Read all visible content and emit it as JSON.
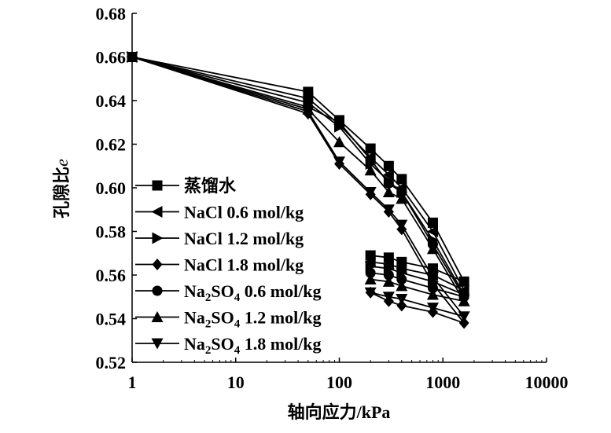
{
  "chart_data": {
    "type": "line",
    "xlabel": "轴向应力/kPa",
    "ylabel": "孔隙比",
    "ylabel_var": "e",
    "xscale": "log",
    "xlim": [
      1,
      10000
    ],
    "ylim": [
      0.52,
      0.68
    ],
    "xticks": [
      "1",
      "10",
      "100",
      "1000",
      "10000"
    ],
    "yticks": [
      "0.52",
      "0.54",
      "0.56",
      "0.58",
      "0.60",
      "0.62",
      "0.64",
      "0.66",
      "0.68"
    ],
    "grid": false,
    "legend_position": "left",
    "x": [
      1,
      50,
      100,
      200,
      300,
      400,
      800,
      1600,
      800,
      400,
      300,
      200
    ],
    "series": [
      {
        "name": "蒸馏水",
        "marker": "square",
        "values": [
          0.66,
          0.644,
          0.631,
          0.618,
          0.61,
          0.604,
          0.584,
          0.557,
          0.563,
          0.566,
          0.568,
          0.569
        ]
      },
      {
        "name": "NaCl 0.6 mol/kg",
        "marker": "triangle-left",
        "values": [
          0.66,
          0.641,
          0.629,
          0.614,
          0.606,
          0.6,
          0.58,
          0.553,
          0.56,
          0.563,
          0.565,
          0.566
        ]
      },
      {
        "name": "NaCl 1.2 mol/kg",
        "marker": "triangle-right",
        "values": [
          0.66,
          0.639,
          0.628,
          0.611,
          0.603,
          0.598,
          0.576,
          0.551,
          0.557,
          0.561,
          0.563,
          0.564
        ]
      },
      {
        "name": "NaCl 1.8 mol/kg",
        "marker": "diamond",
        "values": [
          0.66,
          0.634,
          0.611,
          0.597,
          0.589,
          0.581,
          0.556,
          0.538,
          0.543,
          0.546,
          0.548,
          0.552
        ]
      },
      {
        "name": "Na2SO4 0.6 mol/kg",
        "name_parts": [
          "Na",
          "2",
          "SO",
          "4",
          " 0.6 mol/kg"
        ],
        "marker": "circle",
        "values": [
          0.66,
          0.637,
          0.63,
          0.613,
          0.602,
          0.598,
          0.574,
          0.55,
          0.554,
          0.558,
          0.56,
          0.561
        ]
      },
      {
        "name": "Na2SO4 1.2 mol/kg",
        "name_parts": [
          "Na",
          "2",
          "SO",
          "4",
          " 1.2 mol/kg"
        ],
        "marker": "triangle-up",
        "values": [
          0.66,
          0.636,
          0.621,
          0.608,
          0.598,
          0.595,
          0.572,
          0.548,
          0.551,
          0.555,
          0.557,
          0.558
        ]
      },
      {
        "name": "Na2SO4 1.8 mol/kg",
        "name_parts": [
          "Na",
          "2",
          "SO",
          "4",
          " 1.8 mol/kg"
        ],
        "marker": "triangle-down",
        "values": [
          0.66,
          0.635,
          0.612,
          0.598,
          0.59,
          0.583,
          0.559,
          0.541,
          0.545,
          0.549,
          0.55,
          0.552
        ]
      }
    ],
    "color": "#000000"
  }
}
